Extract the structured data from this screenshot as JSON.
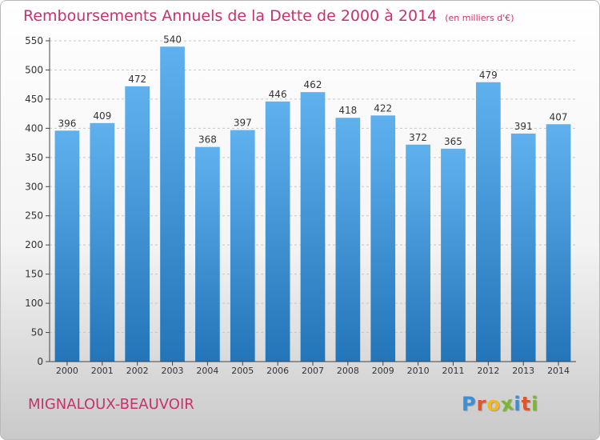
{
  "header": {
    "title": "Remboursements Annuels de la Dette de 2000 à 2014",
    "unit": "(en milliers d'€)"
  },
  "footer": {
    "commune": "MIGNALOUX-BEAUVOIR",
    "logo": {
      "letters": [
        "P",
        "r",
        "o",
        "x",
        "i",
        "t",
        "i"
      ],
      "colors": [
        "#3b8fd6",
        "#e0552a",
        "#f3b81b",
        "#7cb82f",
        "#3b8fd6",
        "#e0552a",
        "#7cb82f"
      ]
    }
  },
  "colors": {
    "title": "#c5336d",
    "bar_top": "#5fb1ee",
    "bar_bottom": "#2375b9",
    "grid": "#c8c8c8",
    "axis": "#444444",
    "label": "#333333"
  },
  "chart_data": {
    "type": "bar",
    "title": "Remboursements Annuels de la Dette de 2000 à 2014",
    "subtitle": "(en milliers d'€)",
    "xlabel": "",
    "ylabel": "",
    "categories": [
      "2000",
      "2001",
      "2002",
      "2003",
      "2004",
      "2005",
      "2006",
      "2007",
      "2008",
      "2009",
      "2010",
      "2011",
      "2012",
      "2013",
      "2014"
    ],
    "values": [
      396,
      409,
      472,
      540,
      368,
      397,
      446,
      462,
      418,
      422,
      372,
      365,
      479,
      391,
      407
    ],
    "ylim": [
      0,
      550
    ],
    "yticks": [
      0,
      50,
      100,
      150,
      200,
      250,
      300,
      350,
      400,
      450,
      500,
      550
    ],
    "grid": true,
    "legend": "none"
  }
}
